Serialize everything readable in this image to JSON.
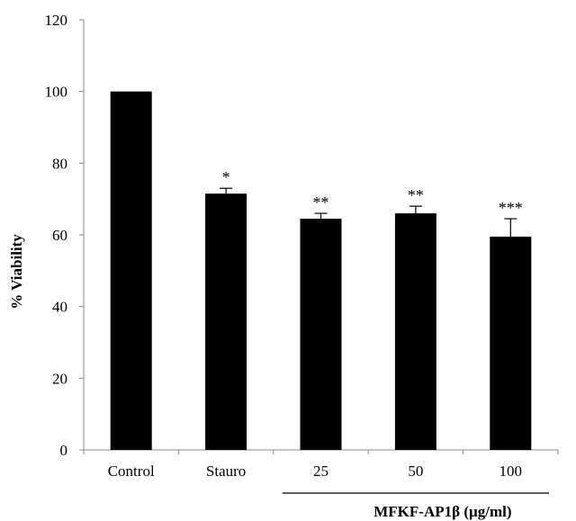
{
  "chart_data": {
    "type": "bar",
    "title": "",
    "xlabel": "",
    "ylabel": "% Viability",
    "ylim": [
      0,
      120
    ],
    "yticks": [
      0,
      20,
      40,
      60,
      80,
      100,
      120
    ],
    "categories": [
      "Control",
      "Stauro",
      "25",
      "50",
      "100"
    ],
    "values": [
      100,
      71.5,
      64.5,
      66,
      59.5
    ],
    "errors": [
      0,
      1.5,
      1.5,
      2,
      5
    ],
    "significance": [
      "",
      "*",
      "**",
      "**",
      "***"
    ],
    "group_label": "MFKF-AP1β (µg/ml)",
    "group_span": [
      "25",
      "100"
    ],
    "bar_color": "#000000",
    "grid": false,
    "legend": "none"
  }
}
